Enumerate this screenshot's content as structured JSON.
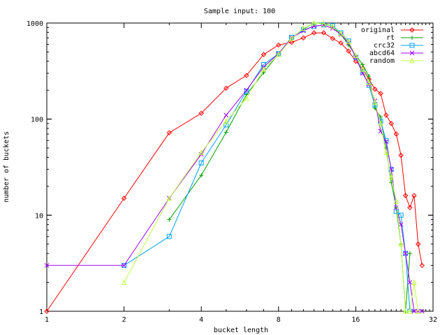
{
  "chart_data": {
    "type": "line",
    "title": "Sample input: 100",
    "xlabel": "bucket length",
    "ylabel": "number of buckets",
    "x_scale": "log2",
    "y_scale": "log10",
    "xlim": [
      1,
      32
    ],
    "ylim": [
      1,
      1000
    ],
    "x_ticks": [
      {
        "value": 1,
        "label": "1"
      },
      {
        "value": 2,
        "label": "2"
      },
      {
        "value": 4,
        "label": "4"
      },
      {
        "value": 8,
        "label": "8"
      },
      {
        "value": 16,
        "label": "16"
      },
      {
        "value": 32,
        "label": "32"
      }
    ],
    "y_ticks": [
      {
        "value": 1,
        "label": "1"
      },
      {
        "value": 10,
        "label": "10"
      },
      {
        "value": 100,
        "label": "100"
      },
      {
        "value": 1000,
        "label": "1000"
      }
    ],
    "legend_position": "top-right",
    "grid": false,
    "series": [
      {
        "name": "original",
        "color": "#ff0000",
        "marker": "diamond",
        "points": [
          [
            1,
            1
          ],
          [
            2,
            15
          ],
          [
            3,
            72
          ],
          [
            4,
            115
          ],
          [
            5,
            210
          ],
          [
            6,
            285
          ],
          [
            7,
            470
          ],
          [
            8,
            590
          ],
          [
            9,
            630
          ],
          [
            10,
            700
          ],
          [
            11,
            790
          ],
          [
            12,
            790
          ],
          [
            13,
            690
          ],
          [
            14,
            620
          ],
          [
            15,
            510
          ],
          [
            16,
            400
          ],
          [
            17,
            340
          ],
          [
            18,
            260
          ],
          [
            19,
            205
          ],
          [
            20,
            185
          ],
          [
            21,
            110
          ],
          [
            22,
            90
          ],
          [
            23,
            70
          ],
          [
            24,
            42
          ],
          [
            25,
            16
          ],
          [
            26,
            12
          ],
          [
            27,
            16
          ],
          [
            28,
            5
          ],
          [
            29,
            3
          ]
        ]
      },
      {
        "name": "rt",
        "color": "#00a000",
        "marker": "plus",
        "points": [
          [
            3,
            9
          ],
          [
            4,
            26
          ],
          [
            5,
            73
          ],
          [
            6,
            180
          ],
          [
            7,
            305
          ],
          [
            8,
            480
          ],
          [
            9,
            700
          ],
          [
            10,
            870
          ],
          [
            11,
            1000
          ],
          [
            12,
            1000
          ],
          [
            13,
            920
          ],
          [
            14,
            760
          ],
          [
            15,
            590
          ],
          [
            16,
            460
          ],
          [
            17,
            370
          ],
          [
            18,
            280
          ],
          [
            19,
            130
          ],
          [
            20,
            105
          ],
          [
            21,
            50
          ],
          [
            22,
            22
          ],
          [
            23,
            12
          ],
          [
            24,
            5
          ],
          [
            25,
            1
          ],
          [
            26,
            4
          ]
        ]
      },
      {
        "name": "crc32",
        "color": "#00a0ff",
        "marker": "square",
        "points": [
          [
            2,
            3
          ],
          [
            3,
            6
          ],
          [
            4,
            35
          ],
          [
            5,
            87
          ],
          [
            6,
            195
          ],
          [
            7,
            370
          ],
          [
            8,
            480
          ],
          [
            9,
            710
          ],
          [
            10,
            850
          ],
          [
            11,
            920
          ],
          [
            12,
            960
          ],
          [
            13,
            940
          ],
          [
            14,
            790
          ],
          [
            15,
            650
          ],
          [
            16,
            440
          ],
          [
            17,
            310
          ],
          [
            18,
            225
          ],
          [
            19,
            140
          ],
          [
            20,
            95
          ],
          [
            21,
            60
          ],
          [
            22,
            30
          ],
          [
            23,
            11
          ],
          [
            24,
            10
          ],
          [
            25,
            4
          ],
          [
            26,
            1
          ]
        ]
      },
      {
        "name": "abcd64",
        "color": "#a000ff",
        "marker": "cross",
        "points": [
          [
            1,
            3
          ],
          [
            2,
            3
          ],
          [
            3,
            15
          ],
          [
            4,
            43
          ],
          [
            5,
            110
          ],
          [
            6,
            200
          ],
          [
            7,
            350
          ],
          [
            8,
            480
          ],
          [
            9,
            700
          ],
          [
            10,
            830
          ],
          [
            11,
            930
          ],
          [
            12,
            950
          ],
          [
            13,
            880
          ],
          [
            14,
            760
          ],
          [
            15,
            620
          ],
          [
            16,
            440
          ],
          [
            17,
            300
          ],
          [
            18,
            230
          ],
          [
            19,
            155
          ],
          [
            20,
            75
          ],
          [
            21,
            58
          ],
          [
            22,
            30
          ],
          [
            23,
            12
          ],
          [
            24,
            8
          ],
          [
            25,
            4
          ],
          [
            26,
            2
          ],
          [
            27,
            1
          ],
          [
            28,
            1
          ],
          [
            29,
            1
          ]
        ]
      },
      {
        "name": "random",
        "color": "#c0ff40",
        "marker": "triangle",
        "points": [
          [
            2,
            2
          ],
          [
            3,
            15
          ],
          [
            4,
            45
          ],
          [
            5,
            95
          ],
          [
            6,
            165
          ],
          [
            7,
            330
          ],
          [
            8,
            470
          ],
          [
            9,
            690
          ],
          [
            10,
            880
          ],
          [
            11,
            1000
          ],
          [
            12,
            980
          ],
          [
            13,
            920
          ],
          [
            14,
            780
          ],
          [
            15,
            640
          ],
          [
            16,
            460
          ],
          [
            17,
            330
          ],
          [
            18,
            240
          ],
          [
            19,
            150
          ],
          [
            20,
            90
          ],
          [
            21,
            45
          ],
          [
            22,
            25
          ],
          [
            23,
            14
          ],
          [
            24,
            5
          ],
          [
            25,
            1
          ],
          [
            26,
            1
          ],
          [
            27,
            2
          ],
          [
            28,
            1
          ]
        ]
      }
    ]
  }
}
